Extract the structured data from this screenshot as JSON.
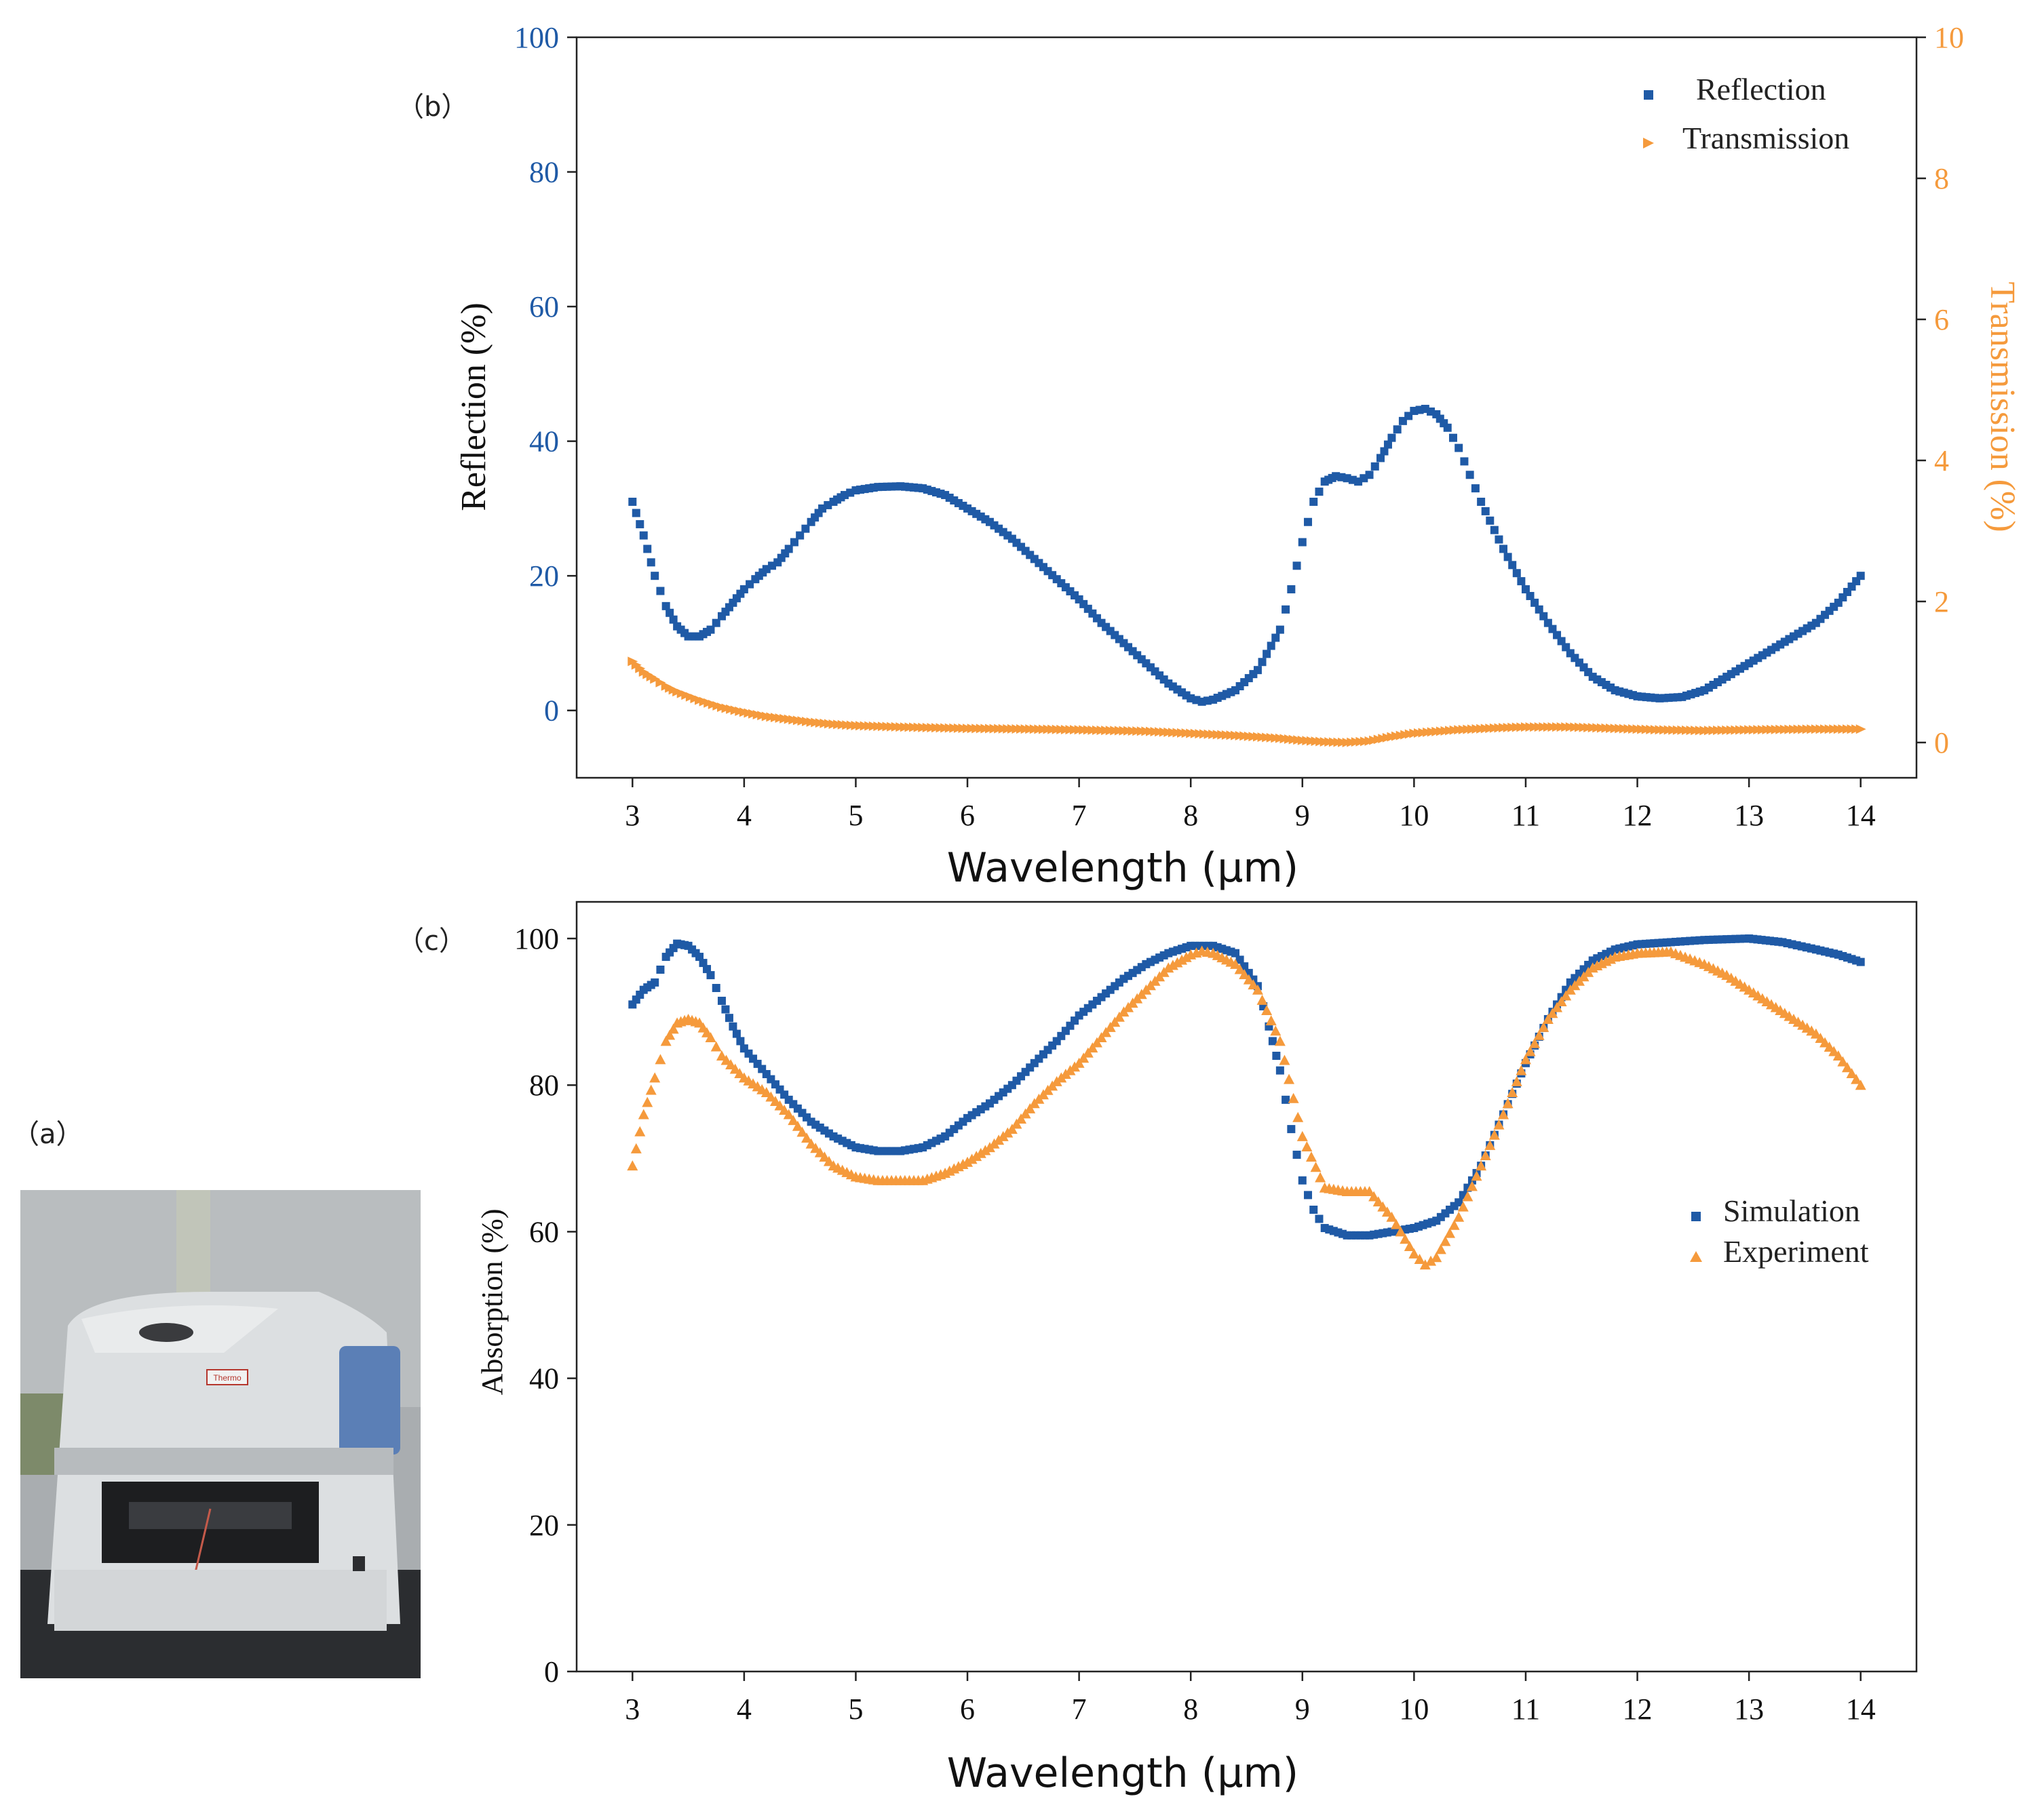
{
  "panels": {
    "a_label": "（a）",
    "b_label": "（b）",
    "c_label": "（c）"
  },
  "colors": {
    "reflection": "#1f5aa6",
    "transmission": "#f59a3c",
    "left_axis": "#1f5aa6",
    "right_axis": "#f59a3c"
  },
  "photo": {
    "brand_label": "Thermo"
  },
  "chart_data": [
    {
      "type": "scatter",
      "panel": "b",
      "xlabel": "Wavelength (μm)",
      "ylabel": "Reflection (%)",
      "y2label": "Transmission (%)",
      "xlim": [
        2.5,
        14.5
      ],
      "ylim": [
        -10,
        100
      ],
      "y2lim": [
        -0.5,
        10
      ],
      "xticks": [
        3,
        4,
        5,
        6,
        7,
        8,
        9,
        10,
        11,
        12,
        13,
        14
      ],
      "yticks": [
        0,
        20,
        40,
        60,
        80,
        100
      ],
      "y2ticks": [
        0,
        2,
        4,
        6,
        8,
        10
      ],
      "legend_position": "top-right",
      "series": [
        {
          "name": "Reflection",
          "axis": "left",
          "marker": "square",
          "points": [
            [
              3.0,
              31
            ],
            [
              3.1,
              26
            ],
            [
              3.2,
              20
            ],
            [
              3.3,
              15.5
            ],
            [
              3.4,
              12.5
            ],
            [
              3.5,
              11
            ],
            [
              3.6,
              11
            ],
            [
              3.7,
              12
            ],
            [
              3.8,
              14
            ],
            [
              3.9,
              16
            ],
            [
              4.0,
              18
            ],
            [
              4.1,
              19.5
            ],
            [
              4.2,
              21
            ],
            [
              4.3,
              22
            ],
            [
              4.4,
              24
            ],
            [
              4.5,
              26
            ],
            [
              4.6,
              28
            ],
            [
              4.7,
              30
            ],
            [
              4.8,
              31
            ],
            [
              4.9,
              32
            ],
            [
              5.0,
              32.7
            ],
            [
              5.2,
              33.2
            ],
            [
              5.4,
              33.3
            ],
            [
              5.6,
              33
            ],
            [
              5.8,
              32
            ],
            [
              6.0,
              30
            ],
            [
              6.2,
              28
            ],
            [
              6.4,
              25.5
            ],
            [
              6.6,
              22.5
            ],
            [
              6.8,
              19.5
            ],
            [
              7.0,
              16.5
            ],
            [
              7.2,
              13
            ],
            [
              7.4,
              10
            ],
            [
              7.6,
              7
            ],
            [
              7.8,
              4
            ],
            [
              8.0,
              1.8
            ],
            [
              8.1,
              1.3
            ],
            [
              8.2,
              1.6
            ],
            [
              8.4,
              3
            ],
            [
              8.6,
              6
            ],
            [
              8.8,
              12
            ],
            [
              8.9,
              18
            ],
            [
              9.0,
              25
            ],
            [
              9.1,
              31
            ],
            [
              9.2,
              34
            ],
            [
              9.3,
              34.8
            ],
            [
              9.4,
              34.5
            ],
            [
              9.5,
              34
            ],
            [
              9.6,
              35
            ],
            [
              9.7,
              37.5
            ],
            [
              9.8,
              40.5
            ],
            [
              9.9,
              43
            ],
            [
              10.0,
              44.5
            ],
            [
              10.1,
              44.8
            ],
            [
              10.2,
              44
            ],
            [
              10.3,
              42
            ],
            [
              10.4,
              39
            ],
            [
              10.5,
              35
            ],
            [
              10.6,
              31
            ],
            [
              10.8,
              24
            ],
            [
              11.0,
              18
            ],
            [
              11.2,
              13
            ],
            [
              11.4,
              8.5
            ],
            [
              11.6,
              5
            ],
            [
              11.8,
              3
            ],
            [
              12.0,
              2.1
            ],
            [
              12.2,
              1.8
            ],
            [
              12.4,
              2
            ],
            [
              12.6,
              3
            ],
            [
              12.8,
              5
            ],
            [
              13.0,
              7
            ],
            [
              13.2,
              9
            ],
            [
              13.4,
              11
            ],
            [
              13.6,
              13
            ],
            [
              13.8,
              16
            ],
            [
              14.0,
              20
            ]
          ]
        },
        {
          "name": "Transmission",
          "axis": "right",
          "marker": "triangle-right",
          "points": [
            [
              3.0,
              1.15
            ],
            [
              3.1,
              1.0
            ],
            [
              3.2,
              0.9
            ],
            [
              3.3,
              0.8
            ],
            [
              3.4,
              0.72
            ],
            [
              3.6,
              0.6
            ],
            [
              3.8,
              0.5
            ],
            [
              4.0,
              0.43
            ],
            [
              4.2,
              0.37
            ],
            [
              4.4,
              0.33
            ],
            [
              4.6,
              0.29
            ],
            [
              4.8,
              0.26
            ],
            [
              5.0,
              0.24
            ],
            [
              5.4,
              0.22
            ],
            [
              6.0,
              0.2
            ],
            [
              6.6,
              0.19
            ],
            [
              7.0,
              0.18
            ],
            [
              7.6,
              0.16
            ],
            [
              8.0,
              0.13
            ],
            [
              8.4,
              0.1
            ],
            [
              8.8,
              0.06
            ],
            [
              9.0,
              0.03
            ],
            [
              9.2,
              0.01
            ],
            [
              9.4,
              0.0
            ],
            [
              9.6,
              0.02
            ],
            [
              9.8,
              0.08
            ],
            [
              10.0,
              0.13
            ],
            [
              10.4,
              0.18
            ],
            [
              10.8,
              0.21
            ],
            [
              11.0,
              0.22
            ],
            [
              11.4,
              0.22
            ],
            [
              11.8,
              0.2
            ],
            [
              12.2,
              0.18
            ],
            [
              12.6,
              0.17
            ],
            [
              13.0,
              0.18
            ],
            [
              13.6,
              0.19
            ],
            [
              14.0,
              0.19
            ]
          ]
        }
      ]
    },
    {
      "type": "scatter",
      "panel": "c",
      "xlabel": "Wavelength (μm)",
      "ylabel": "Absorption (%)",
      "xlim": [
        2.5,
        14.5
      ],
      "ylim": [
        0,
        105
      ],
      "xticks": [
        3,
        4,
        5,
        6,
        7,
        8,
        9,
        10,
        11,
        12,
        13,
        14
      ],
      "yticks": [
        0,
        20,
        40,
        60,
        80,
        100
      ],
      "legend_position": "right",
      "series": [
        {
          "name": "Simulation",
          "marker": "square",
          "points": [
            [
              3.0,
              91
            ],
            [
              3.1,
              93
            ],
            [
              3.2,
              94
            ],
            [
              3.3,
              97.5
            ],
            [
              3.4,
              99.3
            ],
            [
              3.5,
              99
            ],
            [
              3.6,
              97.5
            ],
            [
              3.7,
              95
            ],
            [
              3.8,
              91.5
            ],
            [
              3.9,
              88
            ],
            [
              4.0,
              85
            ],
            [
              4.2,
              81.5
            ],
            [
              4.4,
              78
            ],
            [
              4.6,
              75
            ],
            [
              4.8,
              73
            ],
            [
              5.0,
              71.5
            ],
            [
              5.2,
              71
            ],
            [
              5.4,
              71
            ],
            [
              5.6,
              71.5
            ],
            [
              5.8,
              73
            ],
            [
              6.0,
              75.5
            ],
            [
              6.2,
              77.5
            ],
            [
              6.4,
              80
            ],
            [
              6.6,
              83
            ],
            [
              6.8,
              86
            ],
            [
              7.0,
              89.5
            ],
            [
              7.2,
              92
            ],
            [
              7.4,
              94.5
            ],
            [
              7.6,
              96.5
            ],
            [
              7.8,
              98
            ],
            [
              8.0,
              99
            ],
            [
              8.2,
              99
            ],
            [
              8.4,
              98
            ],
            [
              8.6,
              93.5
            ],
            [
              8.7,
              88
            ],
            [
              8.8,
              82
            ],
            [
              8.9,
              74
            ],
            [
              9.0,
              67
            ],
            [
              9.1,
              63
            ],
            [
              9.2,
              60.5
            ],
            [
              9.4,
              59.5
            ],
            [
              9.6,
              59.5
            ],
            [
              9.8,
              60
            ],
            [
              10.0,
              60.5
            ],
            [
              10.2,
              61.5
            ],
            [
              10.4,
              64
            ],
            [
              10.6,
              69
            ],
            [
              10.8,
              76
            ],
            [
              11.0,
              83
            ],
            [
              11.2,
              89
            ],
            [
              11.4,
              94
            ],
            [
              11.6,
              97
            ],
            [
              11.8,
              98.5
            ],
            [
              12.0,
              99.2
            ],
            [
              12.3,
              99.5
            ],
            [
              12.6,
              99.8
            ],
            [
              13.0,
              100
            ],
            [
              13.3,
              99.5
            ],
            [
              13.6,
              98.5
            ],
            [
              13.8,
              97.8
            ],
            [
              14.0,
              96.8
            ]
          ]
        },
        {
          "name": "Experiment",
          "marker": "triangle-up",
          "points": [
            [
              3.0,
              69
            ],
            [
              3.1,
              76
            ],
            [
              3.2,
              81
            ],
            [
              3.3,
              86
            ],
            [
              3.4,
              88.5
            ],
            [
              3.5,
              89
            ],
            [
              3.6,
              88.5
            ],
            [
              3.7,
              86.5
            ],
            [
              3.8,
              84
            ],
            [
              4.0,
              81
            ],
            [
              4.2,
              79
            ],
            [
              4.4,
              76
            ],
            [
              4.6,
              72
            ],
            [
              4.8,
              69
            ],
            [
              5.0,
              67.5
            ],
            [
              5.2,
              67
            ],
            [
              5.4,
              67
            ],
            [
              5.6,
              67
            ],
            [
              5.8,
              68
            ],
            [
              6.0,
              69.5
            ],
            [
              6.2,
              71.5
            ],
            [
              6.4,
              74
            ],
            [
              6.6,
              77.5
            ],
            [
              6.8,
              80.5
            ],
            [
              7.0,
              83
            ],
            [
              7.2,
              86.5
            ],
            [
              7.4,
              90
            ],
            [
              7.6,
              93
            ],
            [
              7.8,
              96
            ],
            [
              8.0,
              97.8
            ],
            [
              8.1,
              98.3
            ],
            [
              8.2,
              98
            ],
            [
              8.4,
              96.5
            ],
            [
              8.6,
              93
            ],
            [
              8.8,
              86
            ],
            [
              9.0,
              73
            ],
            [
              9.2,
              66
            ],
            [
              9.4,
              65.5
            ],
            [
              9.6,
              65.5
            ],
            [
              9.8,
              62
            ],
            [
              10.0,
              57
            ],
            [
              10.1,
              55.5
            ],
            [
              10.2,
              56.5
            ],
            [
              10.4,
              62
            ],
            [
              10.6,
              69
            ],
            [
              10.8,
              76
            ],
            [
              11.0,
              83.5
            ],
            [
              11.2,
              89
            ],
            [
              11.4,
              93
            ],
            [
              11.6,
              96
            ],
            [
              11.8,
              97.5
            ],
            [
              12.0,
              98
            ],
            [
              12.3,
              98.2
            ],
            [
              12.6,
              96.5
            ],
            [
              12.8,
              95
            ],
            [
              13.0,
              93
            ],
            [
              13.2,
              91
            ],
            [
              13.4,
              89
            ],
            [
              13.6,
              87
            ],
            [
              13.8,
              84
            ],
            [
              14.0,
              80
            ]
          ]
        }
      ]
    }
  ]
}
